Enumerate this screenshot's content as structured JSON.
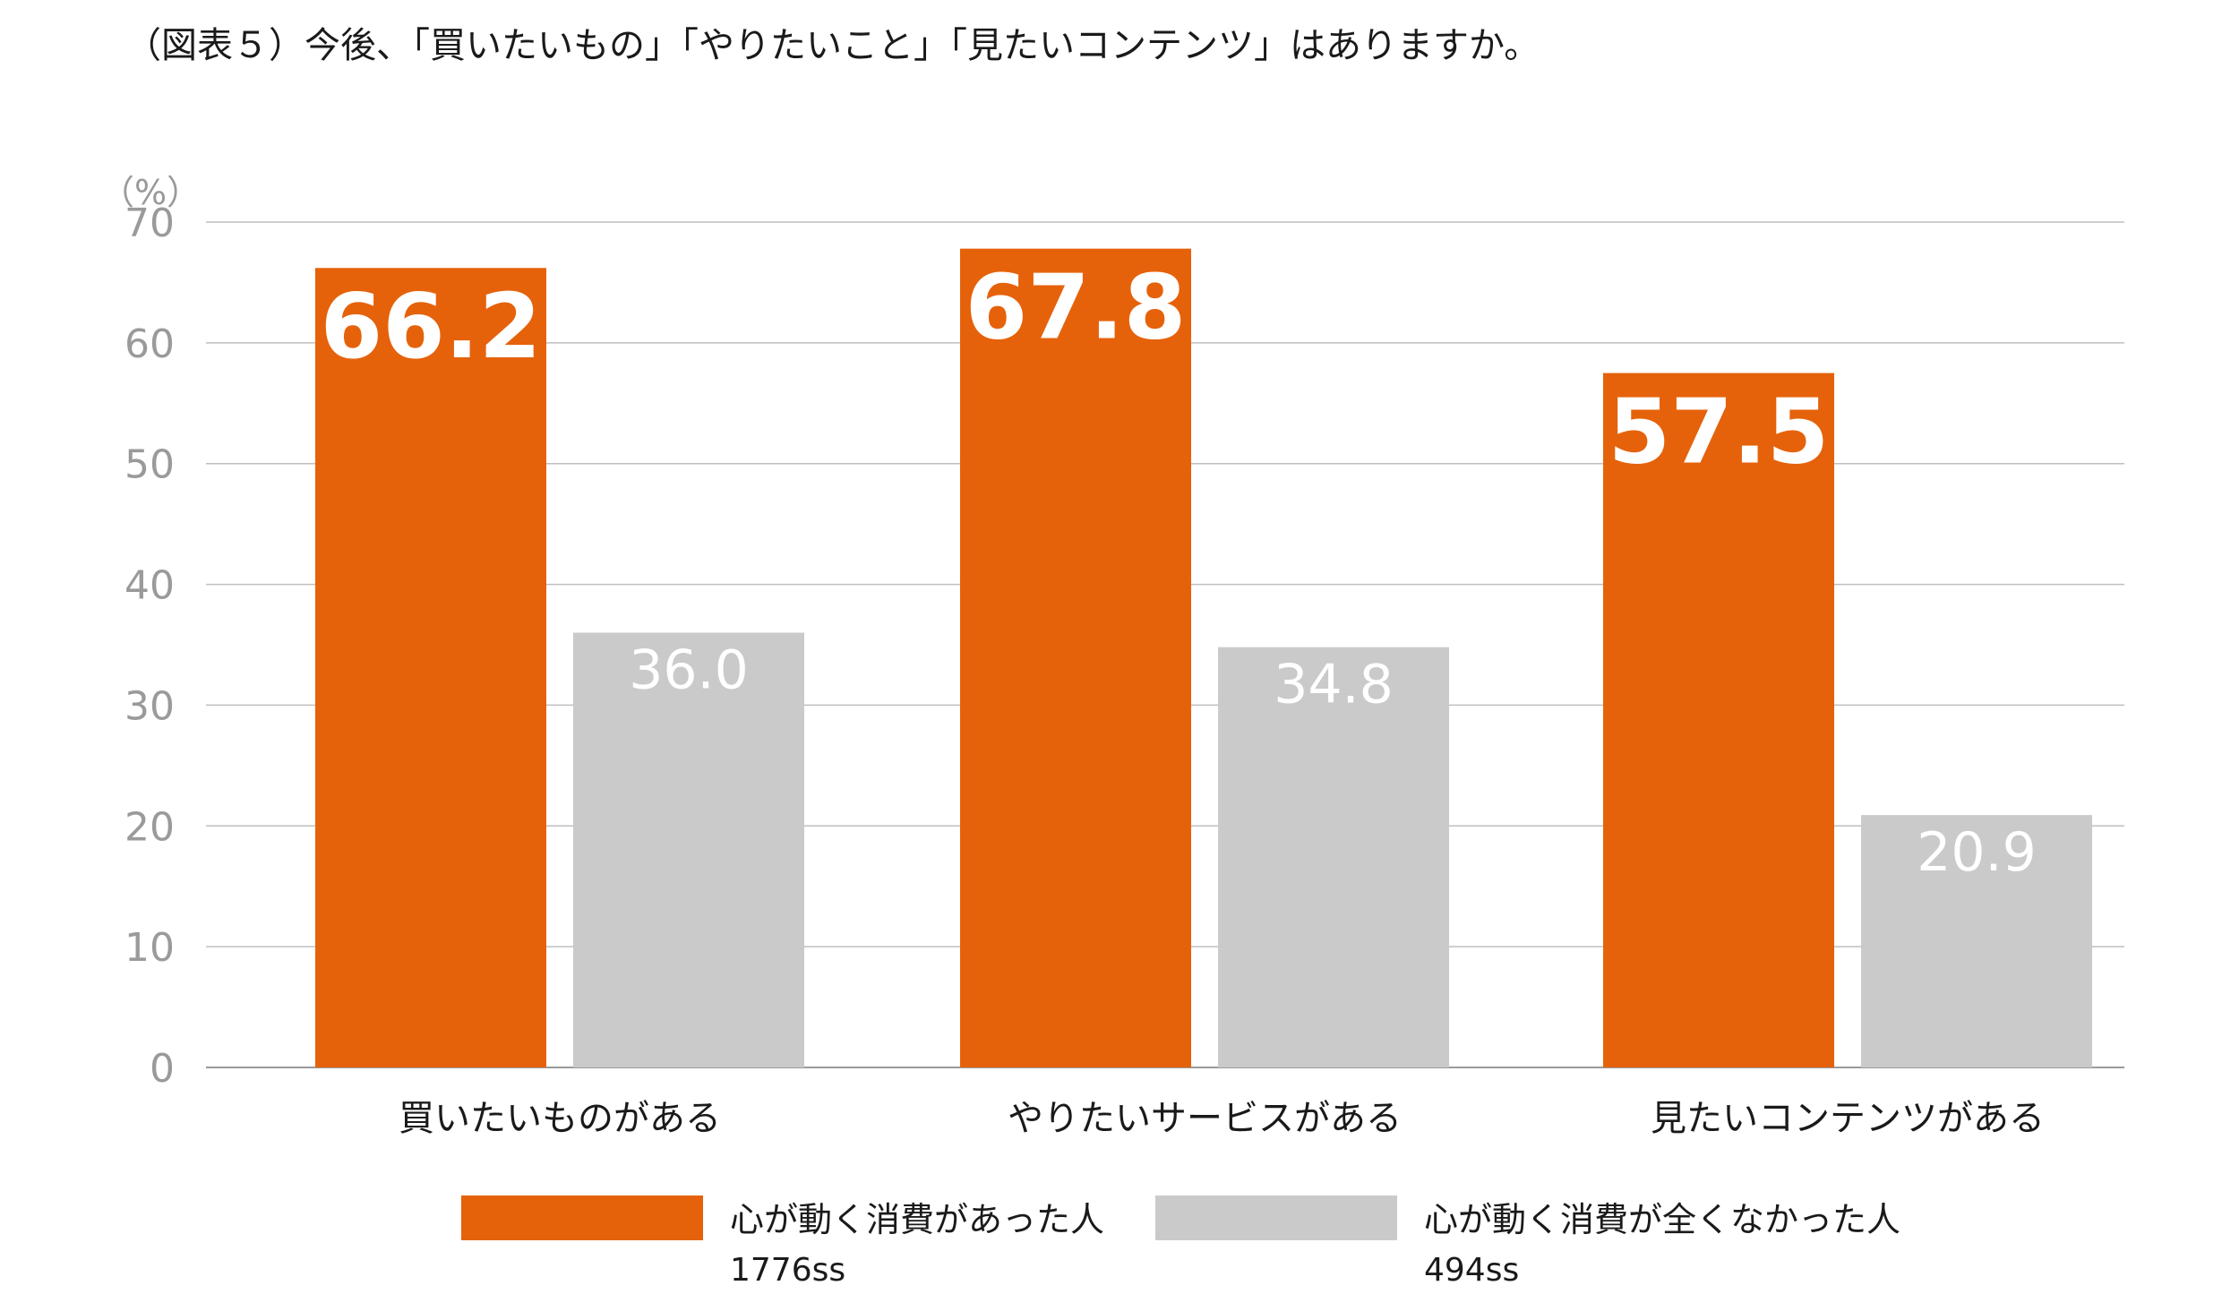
{
  "title": "（図表５）今後、「買いたいもの」「やりたいこと」「見たいコンテンツ」はありますか。",
  "colors": {
    "orange": "#E5620B",
    "gray": "#CBCACB",
    "grid": "#BFBFBF"
  },
  "chart_data": {
    "type": "bar",
    "unit": "（%）",
    "ylim": [
      0,
      70
    ],
    "yticks": [
      "0",
      "10",
      "20",
      "30",
      "40",
      "50",
      "60",
      "70"
    ],
    "grid": true,
    "legend_position": "bottom",
    "categories": [
      "買いたいものがある",
      "やりたいサービスがある",
      "見たいコンテンツがある"
    ],
    "series": [
      {
        "name": "心が動く消費があった人",
        "sample": "1776ss",
        "color": "#E5620B",
        "values": [
          66.2,
          67.8,
          57.5
        ],
        "labels": [
          "66.2",
          "67.8",
          "57.5"
        ]
      },
      {
        "name": "心が動く消費が全くなかった人",
        "sample": "494ss",
        "color": "#CBCACB",
        "values": [
          36.0,
          34.8,
          20.9
        ],
        "labels": [
          "36.0",
          "34.8",
          "20.9"
        ]
      }
    ]
  }
}
